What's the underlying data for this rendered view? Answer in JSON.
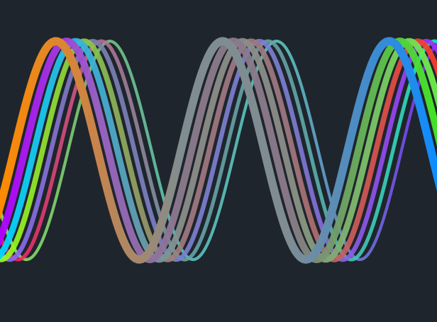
{
  "artwork": {
    "background_color": "#1f252c",
    "kind": "layered sine-wave ribbons",
    "wave_count": 7,
    "palette": [
      {
        "name": "wave-1",
        "stops": [
          "#ff8a00",
          "#c8844b",
          "#7f8d92",
          "#7f8d92",
          "#0d8cff"
        ]
      },
      {
        "name": "wave-2",
        "stops": [
          "#b000ff",
          "#9b62c8",
          "#8a7a8a",
          "#8a7a8a",
          "#44ea26"
        ]
      },
      {
        "name": "wave-3",
        "stops": [
          "#00d7ff",
          "#3eb0d6",
          "#8c8d88",
          "#8c8d88",
          "#6df04b"
        ]
      },
      {
        "name": "wave-4",
        "stops": [
          "#98ff17",
          "#8ac24d",
          "#9f7880",
          "#9f7880",
          "#ff3b2a"
        ]
      },
      {
        "name": "wave-5",
        "stops": [
          "#8f63ff",
          "#7a81ab",
          "#7c7fd0",
          "#7c7fd0",
          "#9e30ff"
        ]
      },
      {
        "name": "wave-6",
        "stops": [
          "#ff1454",
          "#bf6a92",
          "#66a3a8",
          "#66a3a8",
          "#20ecc6"
        ]
      },
      {
        "name": "wave-7",
        "stops": [
          "#8eeb63",
          "#7bc97a",
          "#5cc7c1",
          "#5cc7c1",
          "#7f2dff"
        ]
      }
    ]
  }
}
